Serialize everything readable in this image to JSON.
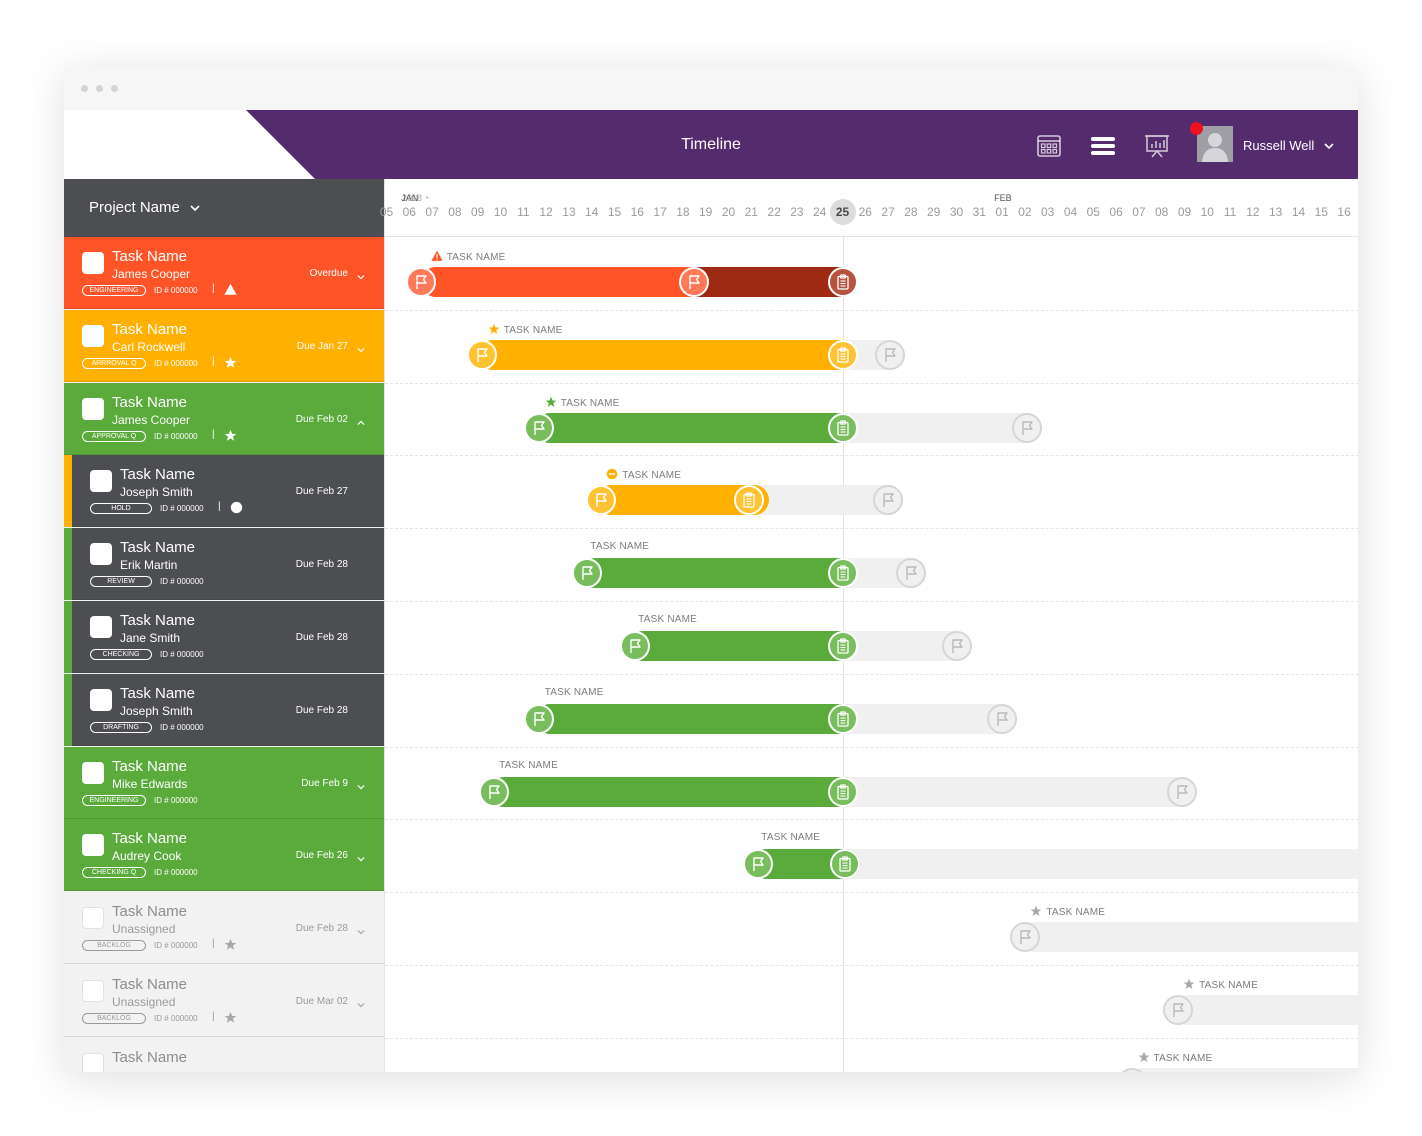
{
  "window": {
    "dots": 3
  },
  "header": {
    "title": "Timeline",
    "user_name": "Russell Well",
    "icons": [
      "calendar-grid-icon",
      "list-lines-icon",
      "presentation-chart-icon"
    ],
    "notification_color": "#ee1122",
    "colors": {
      "header_bg": "#542b6c",
      "sidebar_head_bg": "#4d4e52"
    }
  },
  "sidebar": {
    "project_label": "Project Name",
    "rows": [
      {
        "task": "Task Name",
        "assignee": "James Cooper",
        "tag": "ENGINEERING",
        "id": "ID # 000000",
        "due": "Overdue",
        "status_icon": "warning-icon",
        "chevron": "down",
        "style": "red"
      },
      {
        "task": "Task Name",
        "assignee": "Carl Rockwell",
        "tag": "ARRROVAL Q",
        "id": "ID # 000000",
        "due": "Due Jan 27",
        "status_icon": "star-icon",
        "chevron": "down",
        "style": "orange"
      },
      {
        "task": "Task Name",
        "assignee": "James Cooper",
        "tag": "APPROVAL Q",
        "id": "ID # 000000",
        "due": "Due Feb 02",
        "status_icon": "star-icon",
        "chevron": "up",
        "style": "green"
      },
      {
        "task": "Task Name",
        "assignee": "Joseph Smith",
        "tag": "HOLD",
        "id": "ID # 000000",
        "due": "Due Feb 27",
        "status_icon": "minus-circle-icon",
        "chevron": "none",
        "style": "dark",
        "stripe": "#ffb000"
      },
      {
        "task": "Task Name",
        "assignee": "Erik Martin",
        "tag": "REVIEW",
        "id": "ID # 000000",
        "due": "Due Feb 28",
        "status_icon": "",
        "chevron": "none",
        "style": "dark",
        "stripe": "#5aaa3c"
      },
      {
        "task": "Task Name",
        "assignee": "Jane Smith",
        "tag": "CHECKING",
        "id": "ID # 000000",
        "due": "Due Feb 28",
        "status_icon": "",
        "chevron": "none",
        "style": "dark",
        "stripe": "#5aaa3c"
      },
      {
        "task": "Task Name",
        "assignee": "Joseph Smith",
        "tag": "DRAFTING",
        "id": "ID # 000000",
        "due": "Due Feb 28",
        "status_icon": "",
        "chevron": "none",
        "style": "dark",
        "stripe": "#5aaa3c"
      },
      {
        "task": "Task Name",
        "assignee": "Mike Edwards",
        "tag": "ENGINEERING",
        "id": "ID # 000000",
        "due": "Due Feb 9",
        "status_icon": "",
        "chevron": "down",
        "style": "green"
      },
      {
        "task": "Task Name",
        "assignee": "Audrey Cook",
        "tag": "CHECKING Q",
        "id": "ID # 000000",
        "due": "Due Feb 26",
        "status_icon": "",
        "chevron": "down",
        "style": "green"
      },
      {
        "task": "Task Name",
        "assignee": "Unassigned",
        "tag": "BACKLOG",
        "id": "ID # 000000",
        "due": "Due Feb 28",
        "status_icon": "star-icon",
        "chevron": "down",
        "style": "grey"
      },
      {
        "task": "Task Name",
        "assignee": "Unassigned",
        "tag": "BACKLOG",
        "id": "ID # 000000",
        "due": "Due Mar 02",
        "status_icon": "star-icon",
        "chevron": "down",
        "style": "grey"
      },
      {
        "task": "Task Name",
        "assignee": "",
        "tag": "",
        "id": "",
        "due": "",
        "status_icon": "",
        "chevron": "none",
        "style": "grey"
      }
    ]
  },
  "timeline": {
    "year": "2018",
    "month_labels": [
      {
        "label": "JAN",
        "index": 1
      },
      {
        "label": "FEB",
        "index": 27
      }
    ],
    "days": [
      "05",
      "06",
      "07",
      "08",
      "09",
      "10",
      "11",
      "12",
      "13",
      "14",
      "15",
      "16",
      "17",
      "18",
      "19",
      "20",
      "21",
      "22",
      "23",
      "24",
      "25",
      "26",
      "27",
      "28",
      "29",
      "30",
      "31",
      "01",
      "02",
      "03",
      "04",
      "05",
      "06",
      "07",
      "08",
      "09",
      "10",
      "11",
      "12",
      "13",
      "14",
      "15",
      "16"
    ],
    "today_index": 20,
    "lanes": [
      {
        "label": "TASK NAME",
        "label_icon": "warning-icon",
        "track": null,
        "bar": [
          1.5,
          20
        ],
        "bar_color": "#ff5428",
        "overdue": [
          13.5,
          20
        ],
        "overdue_color": "#9e2a14",
        "markers": [
          {
            "at": 1.5,
            "type": "flag",
            "style": "red"
          },
          {
            "at": 13.5,
            "type": "flag",
            "style": "red"
          },
          {
            "at": 20,
            "type": "clipboard",
            "style": "darkred"
          }
        ]
      },
      {
        "label": "TASK NAME",
        "label_icon": "star-icon",
        "track": [
          4,
          22.1
        ],
        "bar": [
          4,
          20
        ],
        "bar_color": "#ffb000",
        "markers": [
          {
            "at": 4.2,
            "type": "flag",
            "style": "orange"
          },
          {
            "at": 20,
            "type": "clipboard",
            "style": "orange"
          },
          {
            "at": 22.1,
            "type": "flag",
            "style": "grey"
          }
        ]
      },
      {
        "label": "TASK NAME",
        "label_icon": "star-icon",
        "track": [
          6.5,
          28.1
        ],
        "bar": [
          6.5,
          20
        ],
        "bar_color": "#5aaa3c",
        "markers": [
          {
            "at": 6.7,
            "type": "flag",
            "style": "green"
          },
          {
            "at": 20,
            "type": "clipboard",
            "style": "green"
          },
          {
            "at": 28.1,
            "type": "flag",
            "style": "grey"
          }
        ]
      },
      {
        "label": "TASK NAME",
        "label_icon": "minus-circle-icon",
        "track": [
          9.2,
          22
        ],
        "bar": [
          9.2,
          16.1
        ],
        "bar_color": "#ffb000",
        "markers": [
          {
            "at": 9.4,
            "type": "flag",
            "style": "orange"
          },
          {
            "at": 15.9,
            "type": "clipboard",
            "style": "orange"
          },
          {
            "at": 22,
            "type": "flag",
            "style": "grey"
          }
        ]
      },
      {
        "label": "TASK NAME",
        "label_icon": "",
        "track": [
          8.5,
          23
        ],
        "bar": [
          8.5,
          20
        ],
        "bar_color": "#5aaa3c",
        "markers": [
          {
            "at": 8.8,
            "type": "flag",
            "style": "green"
          },
          {
            "at": 20,
            "type": "clipboard",
            "style": "green"
          },
          {
            "at": 23,
            "type": "flag",
            "style": "grey"
          }
        ]
      },
      {
        "label": "TASK NAME",
        "label_icon": "",
        "track": [
          10.6,
          25
        ],
        "bar": [
          10.6,
          20
        ],
        "bar_color": "#5aaa3c",
        "markers": [
          {
            "at": 10.9,
            "type": "flag",
            "style": "green"
          },
          {
            "at": 20,
            "type": "clipboard",
            "style": "green"
          },
          {
            "at": 25,
            "type": "flag",
            "style": "grey"
          }
        ]
      },
      {
        "label": "TASK NAME",
        "label_icon": "",
        "track": [
          6.5,
          27
        ],
        "bar": [
          6.5,
          20
        ],
        "bar_color": "#5aaa3c",
        "markers": [
          {
            "at": 6.7,
            "type": "flag",
            "style": "green"
          },
          {
            "at": 20,
            "type": "clipboard",
            "style": "green"
          },
          {
            "at": 27,
            "type": "flag",
            "style": "grey"
          }
        ]
      },
      {
        "label": "TASK NAME",
        "label_icon": "",
        "track": [
          4.5,
          34.9
        ],
        "bar": [
          4.5,
          20
        ],
        "bar_color": "#5aaa3c",
        "markers": [
          {
            "at": 4.7,
            "type": "flag",
            "style": "green"
          },
          {
            "at": 20,
            "type": "clipboard",
            "style": "green"
          },
          {
            "at": 34.9,
            "type": "flag",
            "style": "grey"
          }
        ]
      },
      {
        "label": "TASK NAME",
        "label_icon": "",
        "track": [
          16,
          43
        ],
        "bar": [
          16,
          20.1
        ],
        "bar_color": "#5aaa3c",
        "markers": [
          {
            "at": 16.3,
            "type": "flag",
            "style": "green"
          },
          {
            "at": 20.1,
            "type": "clipboard",
            "style": "green"
          }
        ]
      },
      {
        "label": "TASK NAME",
        "label_icon": "star-icon",
        "track": [
          27.8,
          43
        ],
        "bar": null,
        "markers": [
          {
            "at": 28,
            "type": "flag",
            "style": "grey"
          }
        ]
      },
      {
        "label": "TASK NAME",
        "label_icon": "star-icon",
        "track": [
          34.5,
          43
        ],
        "bar": null,
        "markers": [
          {
            "at": 34.7,
            "type": "flag",
            "style": "grey"
          }
        ]
      },
      {
        "label": "TASK NAME",
        "label_icon": "star-icon",
        "track": [
          32.5,
          43
        ],
        "bar": null,
        "markers": [
          {
            "at": 32.7,
            "type": "flag",
            "style": "grey"
          }
        ]
      }
    ]
  }
}
